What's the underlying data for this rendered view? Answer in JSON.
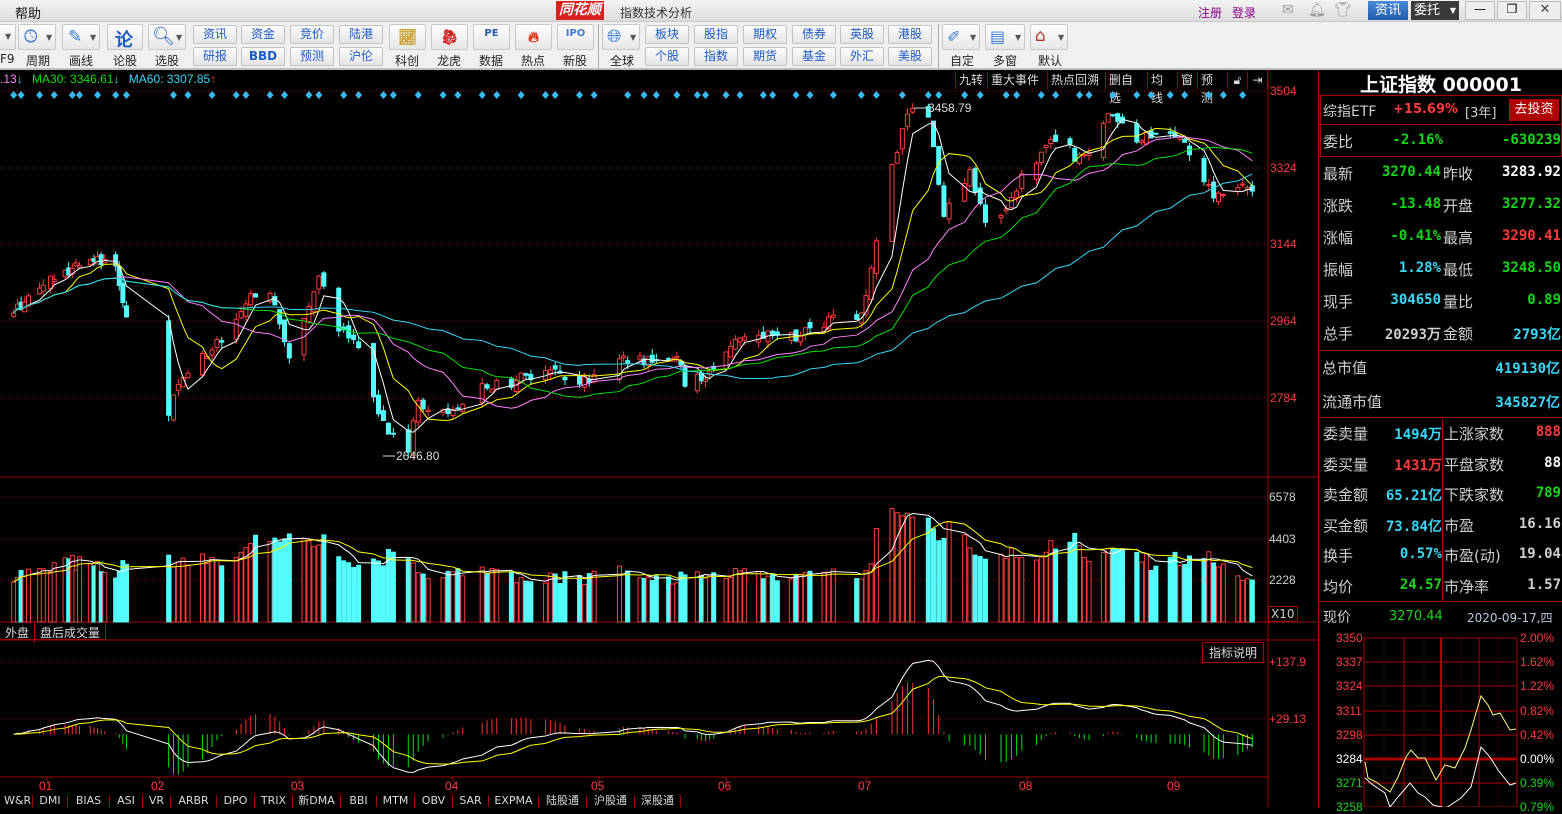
{
  "titlebar": {
    "menu_help": "帮助",
    "logo": "同花顺",
    "title": "指数技术分析",
    "register": "注册",
    "login": "登录",
    "news_button": "资讯",
    "order_button": "委托"
  },
  "toolbar": {
    "f9": "F9",
    "period": "周期",
    "draw": "画线",
    "discuss": "论股",
    "pick": "选股",
    "pairs": [
      [
        "资讯",
        "研报"
      ],
      [
        "资金",
        "BBD"
      ],
      [
        "竞价",
        "预测"
      ],
      [
        "陆港",
        "沪伦"
      ]
    ],
    "icons": [
      "科创",
      "龙虎",
      "数据",
      "热点",
      "新股"
    ],
    "global": "全球",
    "pairs2": [
      [
        "板块",
        "个股"
      ],
      [
        "股指",
        "指数"
      ],
      [
        "期权",
        "期货"
      ],
      [
        "债券",
        "基金"
      ],
      [
        "英股",
        "外汇"
      ],
      [
        "港股",
        "美股"
      ]
    ],
    "custom": "自定",
    "multi": "多窗",
    "default": "默认"
  },
  "chart_header": {
    "ma_partial": ".13",
    "ma30": "MA30: 3346.61",
    "ma60": "MA60: 3307.85",
    "buttons": [
      "九转",
      "重大事件",
      "热点回溯",
      "删自选",
      "均线",
      "窗",
      "预测"
    ]
  },
  "price_axis": [
    "3504",
    "3324",
    "3144",
    "2964",
    "2784"
  ],
  "annotations": {
    "high": "3458.79",
    "low": "2646.80"
  },
  "volume_axis": [
    "6578",
    "4403",
    "2228"
  ],
  "volume_unit": "X10",
  "volume_tabs": [
    "外盘",
    "盘后成交量"
  ],
  "macd_axis": [
    "+137.9",
    "+29.13"
  ],
  "indicator_help": "指标说明",
  "months": [
    "01",
    "02",
    "03",
    "04",
    "05",
    "06",
    "07",
    "08",
    "09"
  ],
  "indicator_tabs": [
    "W&R",
    "DMI",
    "BIAS",
    "ASI",
    "VR",
    "ARBR",
    "DPO",
    "TRIX",
    "新DMA",
    "BBI",
    "MTM",
    "OBV",
    "SAR",
    "EXPMA",
    "陆股通",
    "沪股通",
    "深股通"
  ],
  "colors": {
    "up": "#ff3b3b",
    "down": "#54fcfc",
    "ma5": "#ffffff",
    "ma10": "#ffff00",
    "ma20": "#ff80ff",
    "ma30": "#00e000",
    "ma60": "#3ad8f8",
    "grid": "#a00000"
  },
  "quote": {
    "title": "上证指数 000001",
    "etf_label": "综指ETF",
    "etf_return": "+15.69%",
    "etf_period": "[3年]",
    "invest_button": "去投资",
    "weibi_label": "委比",
    "weibi_pct": "-2.16%",
    "weibi_diff": "-630239",
    "rows": [
      {
        "l1": "最新",
        "v1": "3270.44",
        "c1": "grn",
        "l2": "昨收",
        "v2": "3283.92",
        "c2": "wht"
      },
      {
        "l1": "涨跌",
        "v1": "-13.48",
        "c1": "grn",
        "l2": "开盘",
        "v2": "3277.32",
        "c2": "grn"
      },
      {
        "l1": "涨幅",
        "v1": "-0.41%",
        "c1": "grn",
        "l2": "最高",
        "v2": "3290.41",
        "c2": "red"
      },
      {
        "l1": "振幅",
        "v1": "1.28%",
        "c1": "cyn",
        "l2": "最低",
        "v2": "3248.50",
        "c2": "grn"
      },
      {
        "l1": "现手",
        "v1": "304650",
        "c1": "cyn",
        "l2": "量比",
        "v2": "0.89",
        "c2": "grn"
      },
      {
        "l1": "总手",
        "v1": "20293万",
        "c1": "gry",
        "l2": "金额",
        "v2": "2793亿",
        "c2": "cyn"
      }
    ],
    "mcap_label": "总市值",
    "mcap": "419130亿",
    "float_label": "流通市值",
    "float_mcap": "345827亿",
    "rows2": [
      {
        "l1": "委卖量",
        "v1": "1494万",
        "c1": "cyn",
        "l2": "上涨家数",
        "v2": "888",
        "c2": "red"
      },
      {
        "l1": "委买量",
        "v1": "1431万",
        "c1": "red",
        "l2": "平盘家数",
        "v2": "88",
        "c2": "wht"
      },
      {
        "l1": "卖金额",
        "v1": "65.21亿",
        "c1": "cyn",
        "l2": "下跌家数",
        "v2": "789",
        "c2": "grn"
      },
      {
        "l1": "买金额",
        "v1": "73.84亿",
        "c1": "cyn",
        "l2": "市盈",
        "v2": "16.16",
        "c2": "gry"
      },
      {
        "l1": "换手",
        "v1": "0.57%",
        "c1": "cyn",
        "l2": "市盈(动)",
        "v2": "19.04",
        "c2": "gry"
      },
      {
        "l1": "均价",
        "v1": "24.57",
        "c1": "grn",
        "l2": "市净率",
        "v2": "1.57",
        "c2": "gry"
      }
    ],
    "price_label": "现价",
    "price": "3270.44",
    "date": "2020-09-17,四",
    "mini_left": [
      "3350",
      "3337",
      "3324",
      "3311",
      "3298",
      "3284",
      "3271",
      "3258"
    ],
    "mini_right": [
      "2.00%",
      "1.62%",
      "1.22%",
      "0.82%",
      "0.42%",
      "0.00%",
      "0.39%",
      "0.79%"
    ]
  },
  "chart_data": {
    "type": "candlestick",
    "approx_close_path": [
      [
        "2019-12-23",
        2985,
        2500
      ],
      [
        "2019-12-31",
        3050,
        2700
      ],
      [
        "2020-01-06",
        3085,
        3200
      ],
      [
        "2020-01-14",
        3106,
        2900
      ],
      [
        "2020-01-20",
        3095,
        2600
      ],
      [
        "2020-01-23",
        2976,
        3000
      ],
      [
        "2020-02-03",
        2746,
        3300
      ],
      [
        "2020-02-05",
        2818,
        3400
      ],
      [
        "2020-02-10",
        2890,
        3200
      ],
      [
        "2020-02-14",
        2917,
        3300
      ],
      [
        "2020-02-20",
        3030,
        4000
      ],
      [
        "2020-02-24",
        3031,
        4300
      ],
      [
        "2020-02-28",
        2880,
        4100
      ],
      [
        "2020-03-05",
        3071,
        4200
      ],
      [
        "2020-03-09",
        2943,
        3900
      ],
      [
        "2020-03-12",
        2923,
        3300
      ],
      [
        "2020-03-16",
        2789,
        3200
      ],
      [
        "2020-03-19",
        2702,
        3400
      ],
      [
        "2020-03-23",
        2660,
        3000
      ],
      [
        "2020-03-25",
        2781,
        2800
      ],
      [
        "2020-03-31",
        2750,
        2500
      ],
      [
        "2020-04-07",
        2820,
        2600
      ],
      [
        "2020-04-14",
        2827,
        2300
      ],
      [
        "2020-04-21",
        2852,
        2400
      ],
      [
        "2020-04-29",
        2822,
        2300
      ],
      [
        "2020-05-06",
        2878,
        2600
      ],
      [
        "2020-05-14",
        2870,
        2300
      ],
      [
        "2020-05-20",
        2883,
        2200
      ],
      [
        "2020-05-22",
        2814,
        2400
      ],
      [
        "2020-05-29",
        2852,
        2300
      ],
      [
        "2020-06-03",
        2923,
        2700
      ],
      [
        "2020-06-10",
        2943,
        2400
      ],
      [
        "2020-06-17",
        2931,
        2300
      ],
      [
        "2020-06-24",
        2980,
        2500
      ],
      [
        "2020-06-30",
        2985,
        2600
      ],
      [
        "2020-07-02",
        3090,
        3600
      ],
      [
        "2020-07-06",
        3332,
        6578
      ],
      [
        "2020-07-09",
        3450,
        5800
      ],
      [
        "2020-07-13",
        3443,
        5200
      ],
      [
        "2020-07-16",
        3211,
        4800
      ],
      [
        "2020-07-21",
        3320,
        3900
      ],
      [
        "2020-07-24",
        3197,
        3800
      ],
      [
        "2020-07-28",
        3228,
        3300
      ],
      [
        "2020-07-31",
        3310,
        3600
      ],
      [
        "2020-08-05",
        3377,
        4000
      ],
      [
        "2020-08-10",
        3380,
        3800
      ],
      [
        "2020-08-11",
        3340,
        4100
      ],
      [
        "2020-08-14",
        3360,
        3300
      ],
      [
        "2020-08-18",
        3451,
        3800
      ],
      [
        "2020-08-24",
        3385,
        3200
      ],
      [
        "2020-08-28",
        3403,
        3100
      ],
      [
        "2020-09-03",
        3384,
        3300
      ],
      [
        "2020-09-04",
        3355,
        3200
      ],
      [
        "2020-09-07",
        3292,
        3800
      ],
      [
        "2020-09-09",
        3254,
        3000
      ],
      [
        "2020-09-14",
        3278,
        2400
      ],
      [
        "2020-09-17",
        3270,
        2300
      ]
    ],
    "price_range": [
      2690,
      3504
    ],
    "high": 3458.79,
    "low": 2646.8,
    "moving_averages": [
      "MA5",
      "MA10",
      "MA20",
      "MA30",
      "MA60"
    ],
    "indicator": "MACD"
  }
}
